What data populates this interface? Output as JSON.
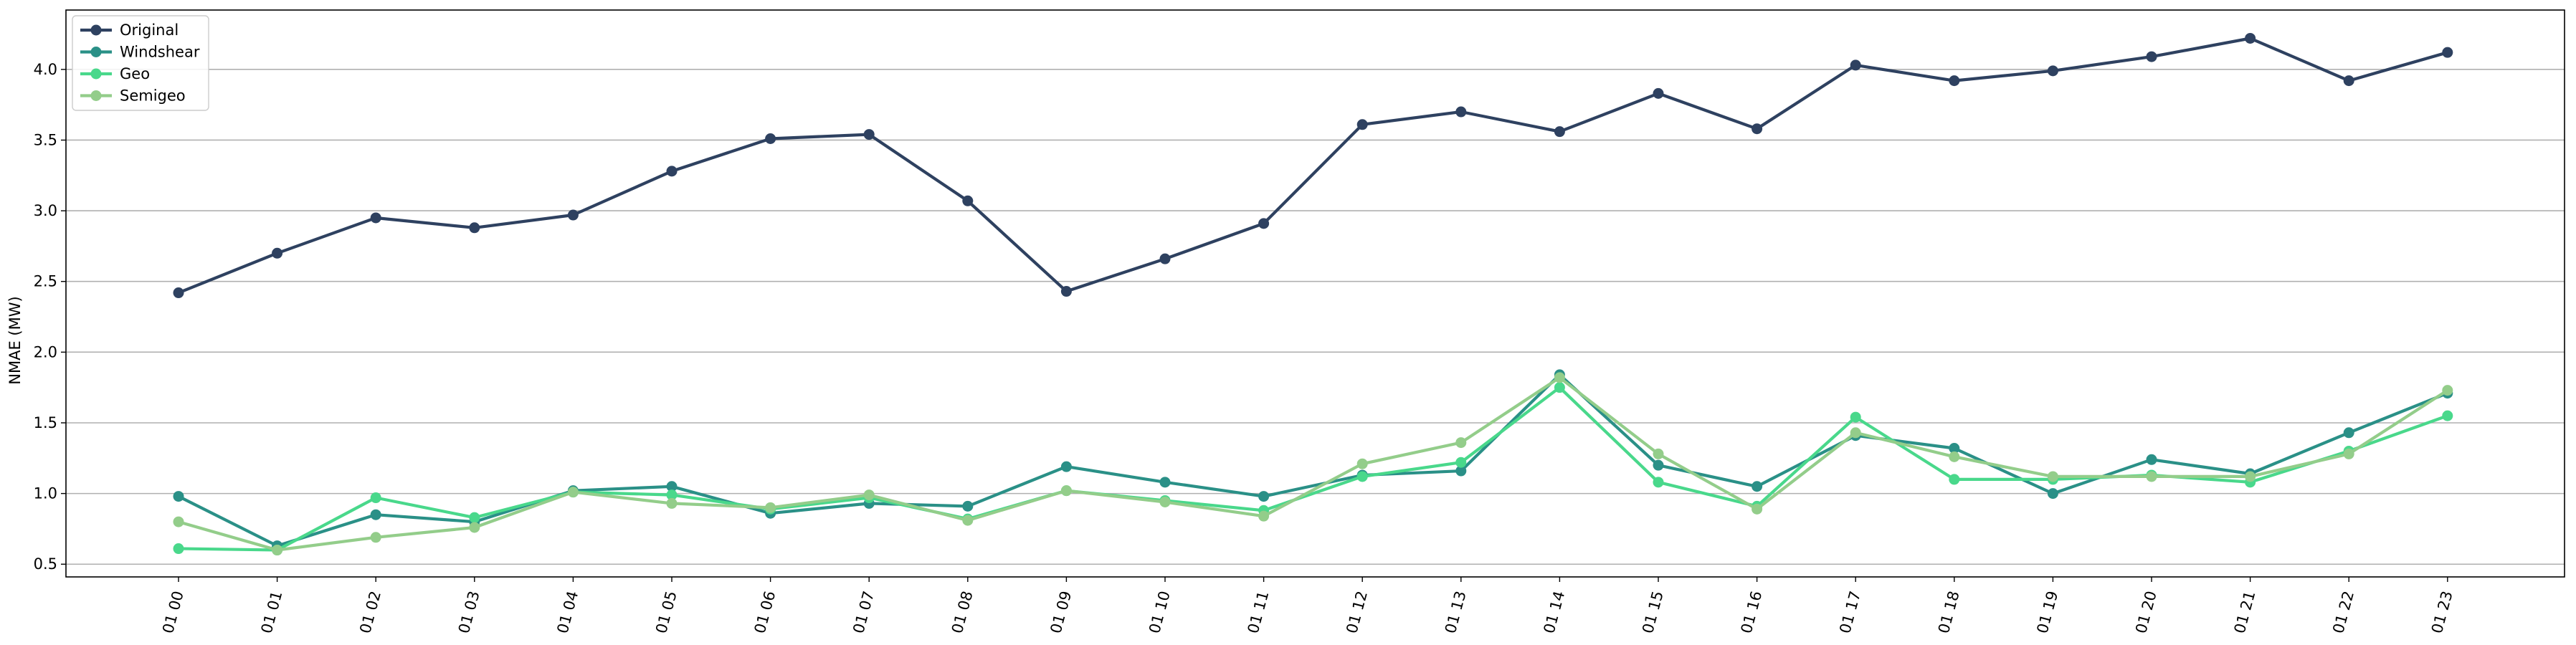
{
  "chart_data": {
    "type": "line",
    "title": "",
    "xlabel": "",
    "ylabel": "NMAE (MW)",
    "categories": [
      "01 00",
      "01 01",
      "01 02",
      "01 03",
      "01 04",
      "01 05",
      "01 06",
      "01 07",
      "01 08",
      "01 09",
      "01 10",
      "01 11",
      "01 12",
      "01 13",
      "01 14",
      "01 15",
      "01 16",
      "01 17",
      "01 18",
      "01 19",
      "01 20",
      "01 21",
      "01 22",
      "01 23"
    ],
    "ylim": [
      0.41,
      4.42
    ],
    "yticks": [
      "0.5",
      "1.0",
      "1.5",
      "2.0",
      "2.5",
      "3.0",
      "3.5",
      "4.0"
    ],
    "grid": "horizontal",
    "legend_position": "top-left",
    "series": [
      {
        "name": "Original",
        "color": "#2e4160",
        "values": [
          2.42,
          2.7,
          2.95,
          2.88,
          2.97,
          3.28,
          3.51,
          3.54,
          3.07,
          2.43,
          2.66,
          2.91,
          3.61,
          3.7,
          3.56,
          3.83,
          3.58,
          4.03,
          3.92,
          3.99,
          4.09,
          4.22,
          3.92,
          4.12
        ]
      },
      {
        "name": "Windshear",
        "color": "#2a9087",
        "values": [
          0.98,
          0.63,
          0.85,
          0.8,
          1.02,
          1.05,
          0.86,
          0.93,
          0.91,
          1.19,
          1.08,
          0.98,
          1.13,
          1.16,
          1.84,
          1.2,
          1.05,
          1.41,
          1.32,
          1.0,
          1.24,
          1.14,
          1.43,
          1.71
        ]
      },
      {
        "name": "Geo",
        "color": "#49d88b",
        "values": [
          0.61,
          0.6,
          0.97,
          0.83,
          1.01,
          0.99,
          0.89,
          0.97,
          0.82,
          1.02,
          0.95,
          0.88,
          1.12,
          1.22,
          1.75,
          1.08,
          0.91,
          1.54,
          1.1,
          1.1,
          1.13,
          1.08,
          1.3,
          1.55
        ]
      },
      {
        "name": "Semigeo",
        "color": "#93cd8a",
        "values": [
          0.8,
          0.6,
          0.69,
          0.76,
          1.01,
          0.93,
          0.9,
          0.99,
          0.81,
          1.02,
          0.94,
          0.84,
          1.21,
          1.36,
          1.82,
          1.28,
          0.89,
          1.43,
          1.26,
          1.12,
          1.12,
          1.12,
          1.28,
          1.73
        ]
      }
    ]
  }
}
